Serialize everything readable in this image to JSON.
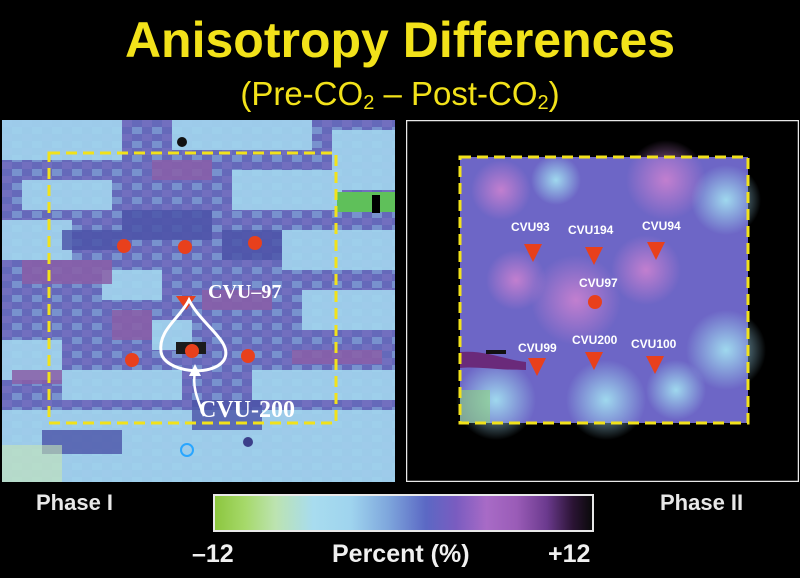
{
  "title": "Anisotropy Differences",
  "subtitle": {
    "open": "(Pre-CO",
    "sub1": "2",
    "middle": " – Post-CO",
    "sub2": "2",
    "close": ")"
  },
  "left_panel": {
    "phase": "Phase I",
    "label_top": "CVU–97",
    "label_bottom": "CVU-200"
  },
  "right_panel": {
    "phase": "Phase II",
    "wells": [
      "CVU93",
      "CVU194",
      "CVU94",
      "CVU97",
      "CVU99",
      "CVU200",
      "CVU100"
    ]
  },
  "colorbar": {
    "min": "–12",
    "max": "+12",
    "unit": "Percent (%)"
  },
  "colors": {
    "title": "#f2e21a",
    "marker": "#e8401c",
    "dashed_box": "#f2e21a"
  }
}
